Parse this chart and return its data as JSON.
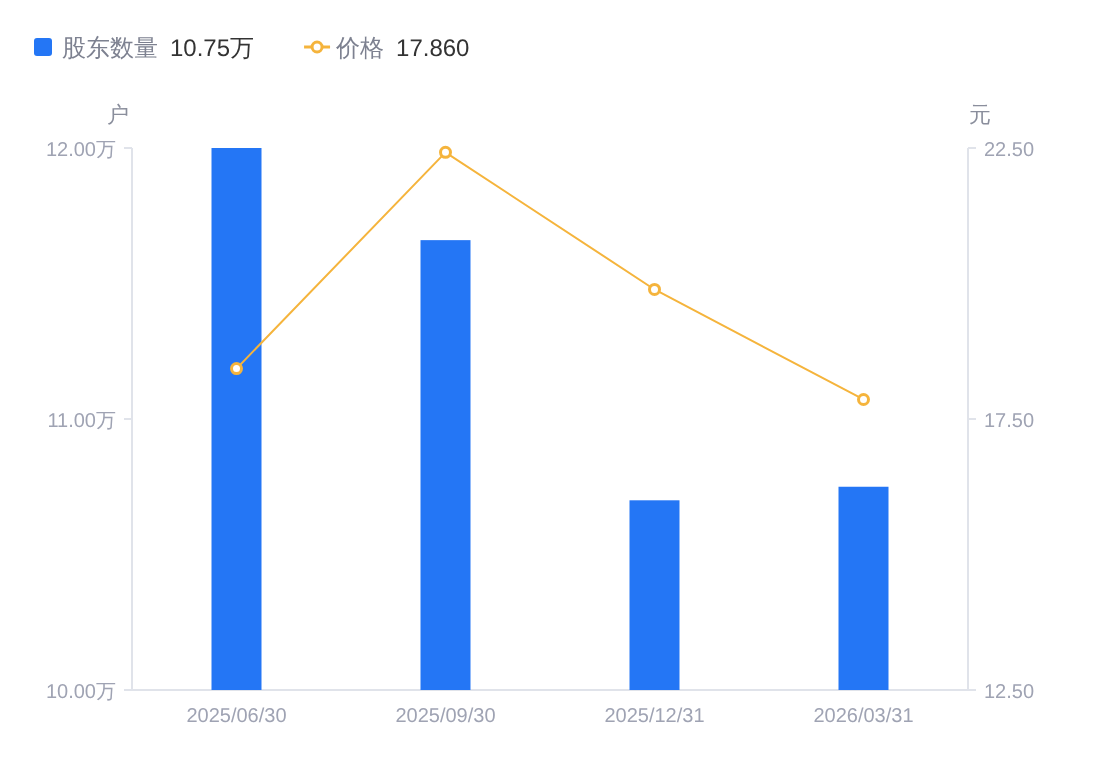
{
  "chart_data": {
    "type": "bar",
    "ylabel": "户",
    "y2label": "元",
    "categories": [
      "2025/06/30",
      "2025/09/30",
      "2025/12/31",
      "2026/03/31"
    ],
    "series": [
      {
        "name": "股东数量",
        "color": "#2476f5",
        "values": [
          12.0,
          11.66,
          10.7,
          10.75
        ]
      },
      {
        "name": "价格",
        "type": "line",
        "axis": "y2",
        "marker": "circle",
        "color": "#f5b43c",
        "values": [
          18.43,
          22.42,
          19.89,
          17.86
        ]
      }
    ],
    "ylim": [
      10,
      12
    ],
    "yticks": [
      {
        "value": 10,
        "label": "10.00万"
      },
      {
        "value": 11,
        "label": "11.00万"
      },
      {
        "value": 12,
        "label": "12.00万"
      }
    ],
    "y2lim": [
      12.5,
      22.5
    ],
    "y2ticks": [
      {
        "value": 12.5,
        "label": "12.50"
      },
      {
        "value": 17.5,
        "label": "17.50"
      },
      {
        "value": 22.5,
        "label": "22.50"
      }
    ],
    "legend": "top left",
    "annotations": [
      "10.75万",
      "17.860"
    ]
  }
}
